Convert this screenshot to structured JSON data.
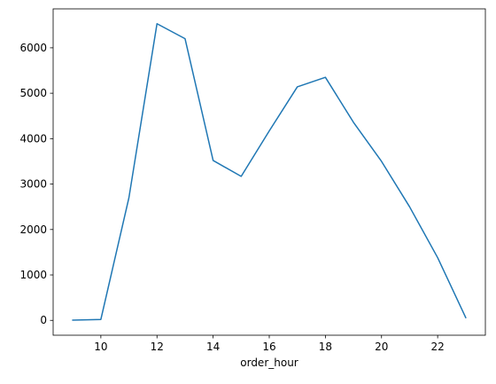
{
  "chart_data": {
    "type": "line",
    "title": "",
    "xlabel": "order_hour",
    "ylabel": "",
    "x": [
      9,
      10,
      11,
      12,
      13,
      14,
      15,
      16,
      17,
      18,
      19,
      20,
      21,
      22,
      23
    ],
    "series": [
      {
        "values": [
          5,
          20,
          2700,
          6530,
          6200,
          3520,
          3170,
          4170,
          5140,
          5350,
          4360,
          3500,
          2500,
          1380,
          60
        ]
      }
    ],
    "xlim": [
      8.3,
      23.7
    ],
    "ylim": [
      -327,
      6857
    ],
    "xticks": [
      10,
      12,
      14,
      16,
      18,
      20,
      22
    ],
    "yticks": [
      0,
      1000,
      2000,
      3000,
      4000,
      5000,
      6000
    ],
    "grid": false,
    "legend": "none",
    "colors": {
      "line": "#1f77b4",
      "axes": "#000000",
      "background": "#ffffff"
    }
  }
}
